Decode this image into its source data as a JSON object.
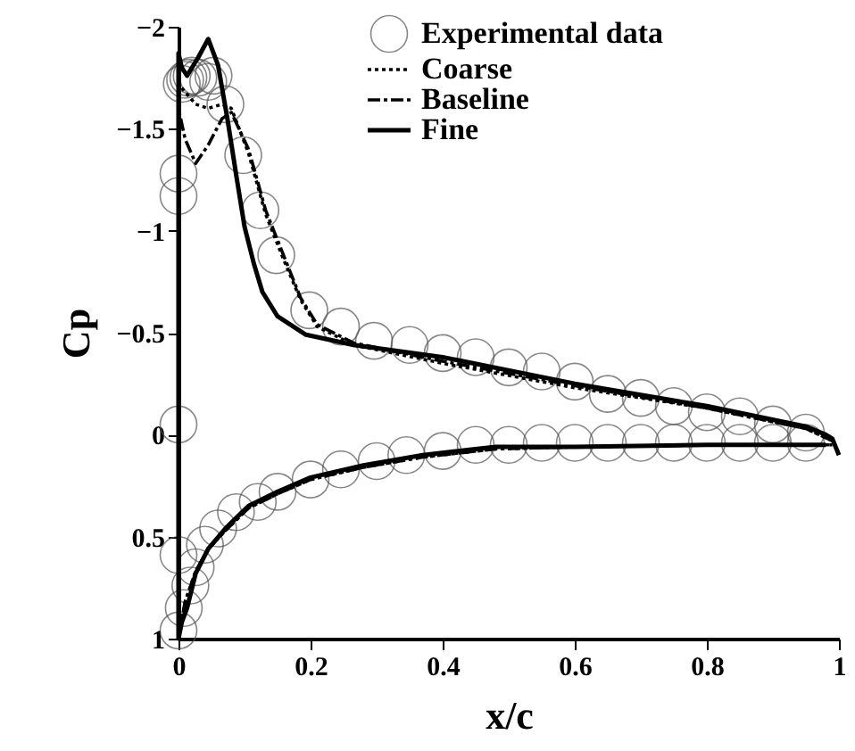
{
  "chart_data": {
    "type": "line",
    "xlabel": "x/c",
    "ylabel": "Cp",
    "xlim": [
      0,
      1
    ],
    "xticks": [
      0,
      0.2,
      0.4,
      0.6,
      0.8,
      1
    ],
    "ylim": [
      1,
      -2
    ],
    "yticks": [
      -2,
      -1.5,
      -1,
      -0.5,
      0,
      0.5,
      1
    ],
    "grid": false,
    "legend": "top right",
    "series": [
      {
        "name": "Experimental data",
        "type": "scatter",
        "marker": "circle",
        "color": "#555555",
        "x": [
          0,
          0,
          0.005,
          0.01,
          0.015,
          0.02,
          0.03,
          0.045,
          0.053,
          0.071,
          0.098,
          0.124,
          0.148,
          0.198,
          0.246,
          0.296,
          0.35,
          0.4,
          0.45,
          0.5,
          0.55,
          0.6,
          0.65,
          0.7,
          0.75,
          0.8,
          0.85,
          0.9,
          0.95,
          0,
          0,
          0,
          0.008,
          0.018,
          0.026,
          0.04,
          0.06,
          0.087,
          0.12,
          0.15,
          0.2,
          0.246,
          0.3,
          0.345,
          0.4,
          0.45,
          0.5,
          0.55,
          0.6,
          0.65,
          0.7,
          0.75,
          0.8,
          0.85,
          0.9,
          0.95
        ],
        "values": [
          -1.28,
          -1.17,
          -1.72,
          -1.74,
          -1.75,
          -1.76,
          -1.75,
          -1.73,
          -1.76,
          -1.62,
          -1.37,
          -1.1,
          -0.88,
          -0.61,
          -0.53,
          -0.46,
          -0.44,
          -0.4,
          -0.38,
          -0.33,
          -0.31,
          -0.26,
          -0.2,
          -0.18,
          -0.14,
          -0.11,
          -0.09,
          -0.05,
          -0.01,
          -0.05,
          0.59,
          0.96,
          0.85,
          0.74,
          0.65,
          0.54,
          0.46,
          0.38,
          0.33,
          0.28,
          0.22,
          0.17,
          0.13,
          0.1,
          0.08,
          0.05,
          0.05,
          0.04,
          0.04,
          0.04,
          0.04,
          0.04,
          0.04,
          0.04,
          0.04,
          0.04
        ]
      },
      {
        "name": "Coarse",
        "type": "line",
        "line_style": "dotted",
        "color": "#000000",
        "x": [
          0.99,
          0.95,
          0.8,
          0.6,
          0.4,
          0.265,
          0.21,
          0.185,
          0.159,
          0.132,
          0.106,
          0.08,
          0.066,
          0.045,
          0.026,
          0.01,
          0,
          0,
          0.01,
          0.026,
          0.045,
          0.071,
          0.106,
          0.15,
          0.2,
          0.28,
          0.37,
          0.48,
          0.6,
          0.8,
          0.95,
          0.99
        ],
        "values": [
          0.03,
          -0.03,
          -0.13,
          -0.23,
          -0.35,
          -0.44,
          -0.53,
          -0.66,
          -0.86,
          -1.08,
          -1.38,
          -1.6,
          -1.62,
          -1.6,
          -1.62,
          -1.68,
          -1.72,
          1.0,
          0.82,
          0.67,
          0.56,
          0.47,
          0.36,
          0.29,
          0.22,
          0.16,
          0.11,
          0.07,
          0.06,
          0.05,
          0.05,
          0.05
        ]
      },
      {
        "name": "Baseline",
        "type": "line",
        "line_style": "dashdot",
        "color": "#000000",
        "x": [
          0.99,
          0.95,
          0.8,
          0.6,
          0.4,
          0.265,
          0.21,
          0.185,
          0.159,
          0.132,
          0.106,
          0.08,
          0.066,
          0.045,
          0.026,
          0.01,
          0,
          0,
          0.01,
          0.026,
          0.045,
          0.071,
          0.106,
          0.15,
          0.2,
          0.28,
          0.37,
          0.48,
          0.6,
          0.8,
          0.95,
          0.99
        ],
        "values": [
          0.03,
          -0.03,
          -0.13,
          -0.24,
          -0.36,
          -0.45,
          -0.54,
          -0.67,
          -0.88,
          -1.1,
          -1.4,
          -1.58,
          -1.55,
          -1.42,
          -1.33,
          -1.45,
          -1.6,
          1.0,
          0.82,
          0.67,
          0.56,
          0.47,
          0.36,
          0.29,
          0.22,
          0.16,
          0.11,
          0.07,
          0.06,
          0.05,
          0.05,
          0.05
        ]
      },
      {
        "name": "Fine",
        "type": "line",
        "line_style": "solid",
        "color": "#000000",
        "x": [
          1.0,
          0.99,
          0.98,
          0.95,
          0.8,
          0.6,
          0.4,
          0.265,
          0.193,
          0.15,
          0.127,
          0.114,
          0.1,
          0.088,
          0.074,
          0.06,
          0.045,
          0.03,
          0.013,
          0.005,
          0,
          0,
          0.005,
          0.013,
          0.026,
          0.045,
          0.071,
          0.106,
          0.15,
          0.2,
          0.28,
          0.37,
          0.48,
          0.6,
          0.8,
          0.95,
          0.98
        ],
        "values": [
          0.1,
          0.02,
          0.0,
          -0.04,
          -0.14,
          -0.25,
          -0.38,
          -0.44,
          -0.49,
          -0.58,
          -0.7,
          -0.84,
          -1.02,
          -1.26,
          -1.55,
          -1.81,
          -1.94,
          -1.85,
          -1.76,
          -1.8,
          -1.87,
          1.0,
          0.92,
          0.85,
          0.68,
          0.56,
          0.46,
          0.35,
          0.28,
          0.21,
          0.15,
          0.1,
          0.06,
          0.06,
          0.05,
          0.05,
          0.05
        ]
      }
    ]
  }
}
